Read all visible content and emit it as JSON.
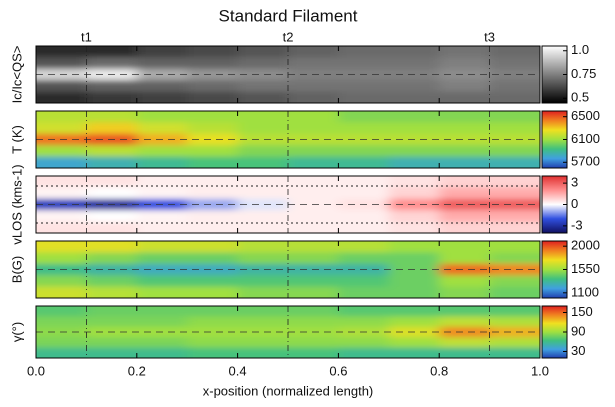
{
  "chart_data": {
    "type": "heatmap",
    "title": "Standard Filament",
    "xlabel": "x-position (normalized length)",
    "xlim": [
      0,
      1
    ],
    "xticks": [
      {
        "value": 0,
        "label": "0.0"
      },
      0.2,
      0.4,
      0.6,
      0.8,
      {
        "value": 1,
        "label": "1.0"
      }
    ],
    "markers": [
      {
        "x": 0.1,
        "label": "t1"
      },
      {
        "x": 0.5,
        "label": "t2"
      },
      {
        "x": 0.9,
        "label": "t3"
      }
    ],
    "x": [
      0.05,
      0.15,
      0.25,
      0.35,
      0.45,
      0.55,
      0.65,
      0.75,
      0.85,
      0.95
    ],
    "panels": [
      {
        "ylabel": "Ic/Ic<QS>",
        "colormap": [
          "#000000",
          "#ffffff"
        ],
        "zlim": [
          0.45,
          1.05
        ],
        "zticks": [
          {
            "value": 1,
            "label": "1.0"
          },
          0.75,
          0.5
        ],
        "z": [
          [
            0.55,
            0.55,
            0.6,
            0.62,
            0.65,
            0.68,
            0.7,
            0.7,
            0.72,
            0.7
          ],
          [
            0.65,
            0.7,
            0.68,
            0.68,
            0.7,
            0.72,
            0.72,
            0.72,
            0.75,
            0.72
          ],
          [
            0.95,
            1.0,
            0.85,
            0.8,
            0.78,
            0.75,
            0.75,
            0.75,
            0.78,
            0.75
          ],
          [
            0.65,
            0.68,
            0.68,
            0.7,
            0.72,
            0.72,
            0.72,
            0.72,
            0.75,
            0.72
          ],
          [
            0.55,
            0.58,
            0.6,
            0.62,
            0.65,
            0.68,
            0.7,
            0.7,
            0.7,
            0.7
          ]
        ]
      },
      {
        "ylabel": "T (K)",
        "colormap": [
          "#2040b0",
          "#40a0e0",
          "#40c080",
          "#a0e040",
          "#f0e020",
          "#f08020",
          "#e02020"
        ],
        "zlim": [
          5600,
          6600
        ],
        "zticks": [
          6500,
          6100,
          5700
        ],
        "z": [
          [
            6150,
            6150,
            6100,
            6100,
            6100,
            6100,
            6050,
            6050,
            6050,
            6050
          ],
          [
            6200,
            6300,
            6200,
            6150,
            6100,
            6100,
            6100,
            6100,
            6100,
            6100
          ],
          [
            6450,
            6500,
            6350,
            6250,
            6150,
            6150,
            6150,
            6150,
            6150,
            6150
          ],
          [
            6100,
            6150,
            6100,
            6100,
            6050,
            6050,
            6050,
            6050,
            6050,
            6050
          ],
          [
            5800,
            5850,
            5900,
            5950,
            5950,
            5900,
            5900,
            5850,
            5850,
            5850
          ]
        ]
      },
      {
        "ylabel": "vLOS (kms-1)",
        "colormap": [
          "#101060",
          "#3050e0",
          "#ffffff",
          "#ff9090",
          "#e03030"
        ],
        "zlim": [
          -4,
          4
        ],
        "zticks": [
          3,
          0,
          -3
        ],
        "z": [
          [
            0.5,
            0.5,
            0.3,
            0.3,
            0.3,
            0.3,
            0.3,
            0.5,
            0.8,
            0.8
          ],
          [
            0.2,
            0,
            0.2,
            0.3,
            0.3,
            0.3,
            0.3,
            0.8,
            1.5,
            1.5
          ],
          [
            -2.5,
            -3,
            -2,
            -1,
            -0.3,
            0.3,
            0.5,
            2,
            3,
            3
          ],
          [
            0.2,
            0,
            0.2,
            0.3,
            0.3,
            0.3,
            0.3,
            0.8,
            1.5,
            1.5
          ],
          [
            0.5,
            0.5,
            0.3,
            0.3,
            0.3,
            0.3,
            0.3,
            0.5,
            0.8,
            0.8
          ]
        ]
      },
      {
        "ylabel": "B(G)",
        "colormap": [
          "#2040b0",
          "#40a0e0",
          "#40c080",
          "#a0e040",
          "#f0e020",
          "#f08020",
          "#e02020"
        ],
        "zlim": [
          1000,
          2100
        ],
        "zticks": [
          2000,
          1550,
          1100
        ],
        "z": [
          [
            1700,
            1700,
            1650,
            1650,
            1600,
            1600,
            1600,
            1550,
            1550,
            1550
          ],
          [
            1550,
            1500,
            1450,
            1450,
            1500,
            1500,
            1450,
            1450,
            1550,
            1500
          ],
          [
            1350,
            1300,
            1250,
            1250,
            1300,
            1300,
            1300,
            1450,
            1950,
            1900
          ],
          [
            1500,
            1450,
            1400,
            1400,
            1400,
            1400,
            1400,
            1450,
            1550,
            1500
          ],
          [
            1650,
            1600,
            1550,
            1550,
            1500,
            1500,
            1450,
            1450,
            1500,
            1450
          ]
        ]
      },
      {
        "ylabel": "γ(°)",
        "colormap": [
          "#2040b0",
          "#40a0e0",
          "#40c080",
          "#a0e040",
          "#f0e020",
          "#f08020",
          "#e02020"
        ],
        "zlim": [
          10,
          170
        ],
        "zticks": [
          150,
          90,
          30
        ],
        "z": [
          [
            70,
            75,
            75,
            75,
            75,
            75,
            70,
            70,
            70,
            70
          ],
          [
            80,
            80,
            80,
            85,
            85,
            85,
            85,
            90,
            100,
            95
          ],
          [
            85,
            90,
            90,
            90,
            90,
            90,
            95,
            110,
            140,
            130
          ],
          [
            80,
            80,
            80,
            85,
            85,
            85,
            85,
            90,
            100,
            95
          ],
          [
            60,
            60,
            60,
            65,
            65,
            65,
            60,
            60,
            60,
            60
          ]
        ]
      }
    ]
  }
}
